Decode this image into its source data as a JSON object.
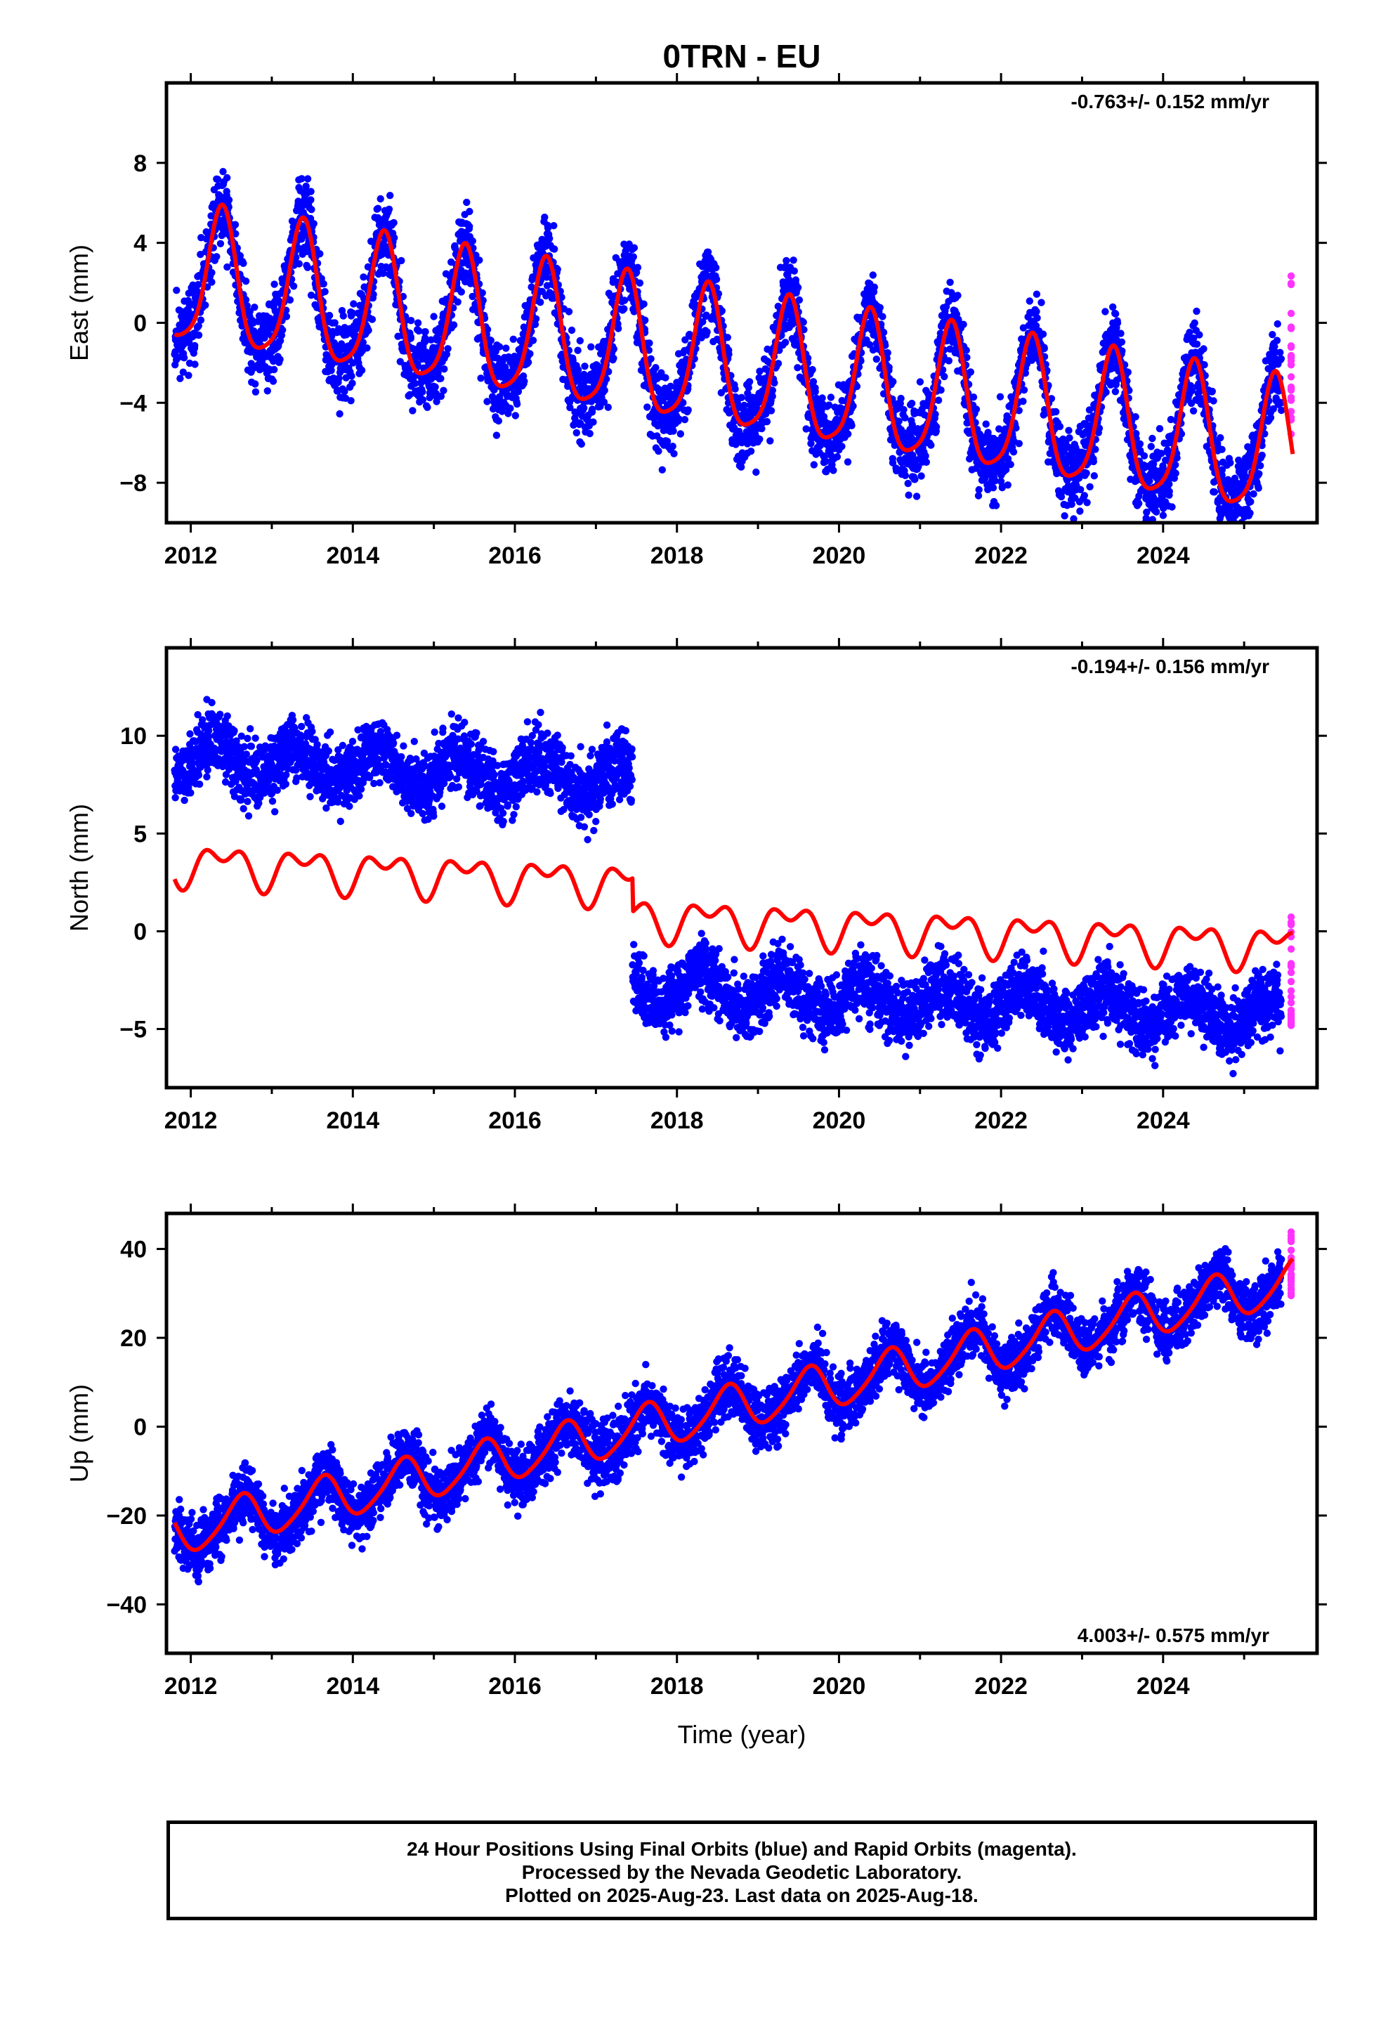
{
  "title": "0TRN - EU",
  "colors": {
    "final_orbits": "#0000ff",
    "rapid_orbits": "#ff33ff",
    "model_fit": "#ff0000",
    "frame": "#000000"
  },
  "chart_data": [
    {
      "type": "scatter",
      "panel": "east",
      "ylabel": "East (mm)",
      "xlabel": "",
      "xlim": [
        2011.7,
        2025.9
      ],
      "ylim": [
        -10,
        12
      ],
      "xticks": [
        2012,
        2014,
        2016,
        2018,
        2020,
        2022,
        2024
      ],
      "yticks": [
        -8,
        -4,
        0,
        4,
        8
      ],
      "rate_text": "-0.763+/- 0.152 mm/yr",
      "rate_position": "top-right",
      "model": {
        "start": 2011.8,
        "end": 2025.6,
        "offset": 2.2,
        "trend": -0.64,
        "annual_amp": 3.4,
        "annual_peak": 0.38,
        "semi_amp": 0.7,
        "semi_peak": 0.4,
        "jump_year": null,
        "jump": 0
      },
      "scatter": {
        "final_count": 4800,
        "final_end": 2025.46,
        "noise": 1.7,
        "seed": 11,
        "rapid_count": 25,
        "rapid_start": 2025.48,
        "rapid_end": 2025.63,
        "rapid_range": [
          -5.6,
          2.4
        ]
      },
      "series": [
        {
          "name": "Final Orbits",
          "color": "#0000ff",
          "kind": "points"
        },
        {
          "name": "Rapid Orbits",
          "color": "#ff33ff",
          "kind": "points"
        },
        {
          "name": "",
          "color": "#ff0000",
          "kind": "line",
          "x": [
            2011.8,
            2012.38,
            2012.85,
            2013.38,
            2013.85,
            2014.38,
            2014.85,
            2015.38,
            2015.85,
            2016.38,
            2016.85,
            2017.38,
            2017.85,
            2018.38,
            2018.85,
            2019.38,
            2019.85,
            2020.38,
            2020.85,
            2021.38,
            2021.85,
            2022.38,
            2022.85,
            2023.38,
            2023.85,
            2024.38,
            2024.85,
            2025.38,
            2025.6
          ],
          "y": [
            2.2,
            8.8,
            1.3,
            8.1,
            0.6,
            7.4,
            -0.1,
            6.6,
            -0.9,
            5.9,
            -1.6,
            5.1,
            -2.4,
            4.4,
            -3.2,
            3.6,
            -4.0,
            2.8,
            -4.7,
            2.1,
            -5.5,
            1.3,
            -6.2,
            0.6,
            -7.0,
            -0.2,
            -7.8,
            -0.9,
            -5.6
          ]
        }
      ]
    },
    {
      "type": "scatter",
      "panel": "north",
      "ylabel": "North (mm)",
      "xlabel": "",
      "xlim": [
        2011.7,
        2025.9
      ],
      "ylim": [
        -8,
        14.5
      ],
      "xticks": [
        2012,
        2014,
        2016,
        2018,
        2020,
        2022,
        2024
      ],
      "yticks": [
        -5,
        0,
        5,
        10
      ],
      "rate_text": "-0.194+/- 0.156 mm/yr",
      "rate_position": "top-right",
      "model": {
        "start": 2011.8,
        "end": 2025.6,
        "offset": 3.5,
        "trend": -0.19,
        "annual_amp": 0.8,
        "annual_peak": 0.4,
        "semi_amp": 0.6,
        "semi_peak": 0.15,
        "jump_year": 2017.45,
        "jump": -1.7
      },
      "scatter": {
        "final_count": 4600,
        "final_end": 2025.46,
        "noise": 1.4,
        "seed": 23,
        "resid_before": 5.4,
        "resid_after": -3.6,
        "rapid_count": 25,
        "rapid_start": 2025.48,
        "rapid_end": 2025.63,
        "rapid_range": [
          -6.0,
          1.0
        ]
      },
      "series": [
        {
          "name": "Final Orbits",
          "color": "#0000ff",
          "kind": "points"
        },
        {
          "name": "Rapid Orbits",
          "color": "#ff33ff",
          "kind": "points"
        },
        {
          "name": "",
          "color": "#ff0000",
          "kind": "line",
          "x": [
            2011.8,
            2012.4,
            2012.7,
            2013.4,
            2013.7,
            2014.4,
            2014.7,
            2015.4,
            2015.7,
            2016.4,
            2016.7,
            2017.4,
            2017.5,
            2018.4,
            2018.7,
            2019.4,
            2019.7,
            2020.4,
            2020.7,
            2021.4,
            2021.7,
            2022.4,
            2022.7,
            2023.4,
            2023.7,
            2024.4,
            2024.7,
            2025.4,
            2025.6
          ],
          "y": [
            3.1,
            4.9,
            2.0,
            4.6,
            1.8,
            4.5,
            1.6,
            4.3,
            1.4,
            4.2,
            1.2,
            4.0,
            1.0,
            3.7,
            0.9,
            3.5,
            0.8,
            3.3,
            0.6,
            3.1,
            0.3,
            3.0,
            0.2,
            2.8,
            0.0,
            2.6,
            -0.3,
            2.4,
            -0.6
          ]
        }
      ]
    },
    {
      "type": "scatter",
      "panel": "up",
      "ylabel": "Up (mm)",
      "xlabel": "Time (year)",
      "xlim": [
        2011.7,
        2025.9
      ],
      "ylim": [
        -51,
        48
      ],
      "xticks": [
        2012,
        2014,
        2016,
        2018,
        2020,
        2022,
        2024
      ],
      "yticks": [
        -40,
        -20,
        0,
        20,
        40
      ],
      "rate_text": "4.003+/- 0.575 mm/yr",
      "rate_position": "bottom-right",
      "model": {
        "start": 2011.8,
        "end": 2025.6,
        "offset": -24,
        "trend": 4.1,
        "annual_amp": 5.0,
        "annual_peak": 0.62,
        "semi_amp": 0.8,
        "semi_peak": 0.2,
        "jump_year": null,
        "jump": 0
      },
      "scatter": {
        "final_count": 4800,
        "final_end": 2025.46,
        "noise": 5.5,
        "seed": 37,
        "rapid_count": 25,
        "rapid_start": 2025.48,
        "rapid_end": 2025.63,
        "rapid_range": [
          28,
          44
        ]
      },
      "series": [
        {
          "name": "Final Orbits",
          "color": "#0000ff",
          "kind": "points"
        },
        {
          "name": "Rapid Orbits",
          "color": "#ff33ff",
          "kind": "points"
        },
        {
          "name": "",
          "color": "#ff0000",
          "kind": "line",
          "x": [
            2011.8,
            2012.1,
            2012.6,
            2013.1,
            2013.6,
            2014.1,
            2014.6,
            2015.1,
            2015.6,
            2016.1,
            2016.6,
            2017.1,
            2017.6,
            2018.1,
            2018.6,
            2019.1,
            2019.6,
            2020.1,
            2020.6,
            2021.1,
            2021.6,
            2022.1,
            2022.6,
            2023.1,
            2023.6,
            2024.1,
            2024.6,
            2025.1,
            2025.6
          ],
          "y": [
            -25,
            -31,
            -16,
            -27,
            -12,
            -22,
            -8,
            -18,
            -4,
            -14,
            0,
            -10,
            4,
            -6,
            8,
            -2,
            12,
            2,
            16,
            6,
            20,
            10,
            24,
            14,
            28,
            18,
            32,
            22,
            35
          ]
        }
      ]
    }
  ],
  "footer": {
    "line1": "24 Hour Positions Using Final Orbits (blue) and Rapid Orbits (magenta).",
    "line2": "Processed by the Nevada Geodetic Laboratory.",
    "line3": "Plotted on 2025-Aug-23. Last data on 2025-Aug-18."
  }
}
